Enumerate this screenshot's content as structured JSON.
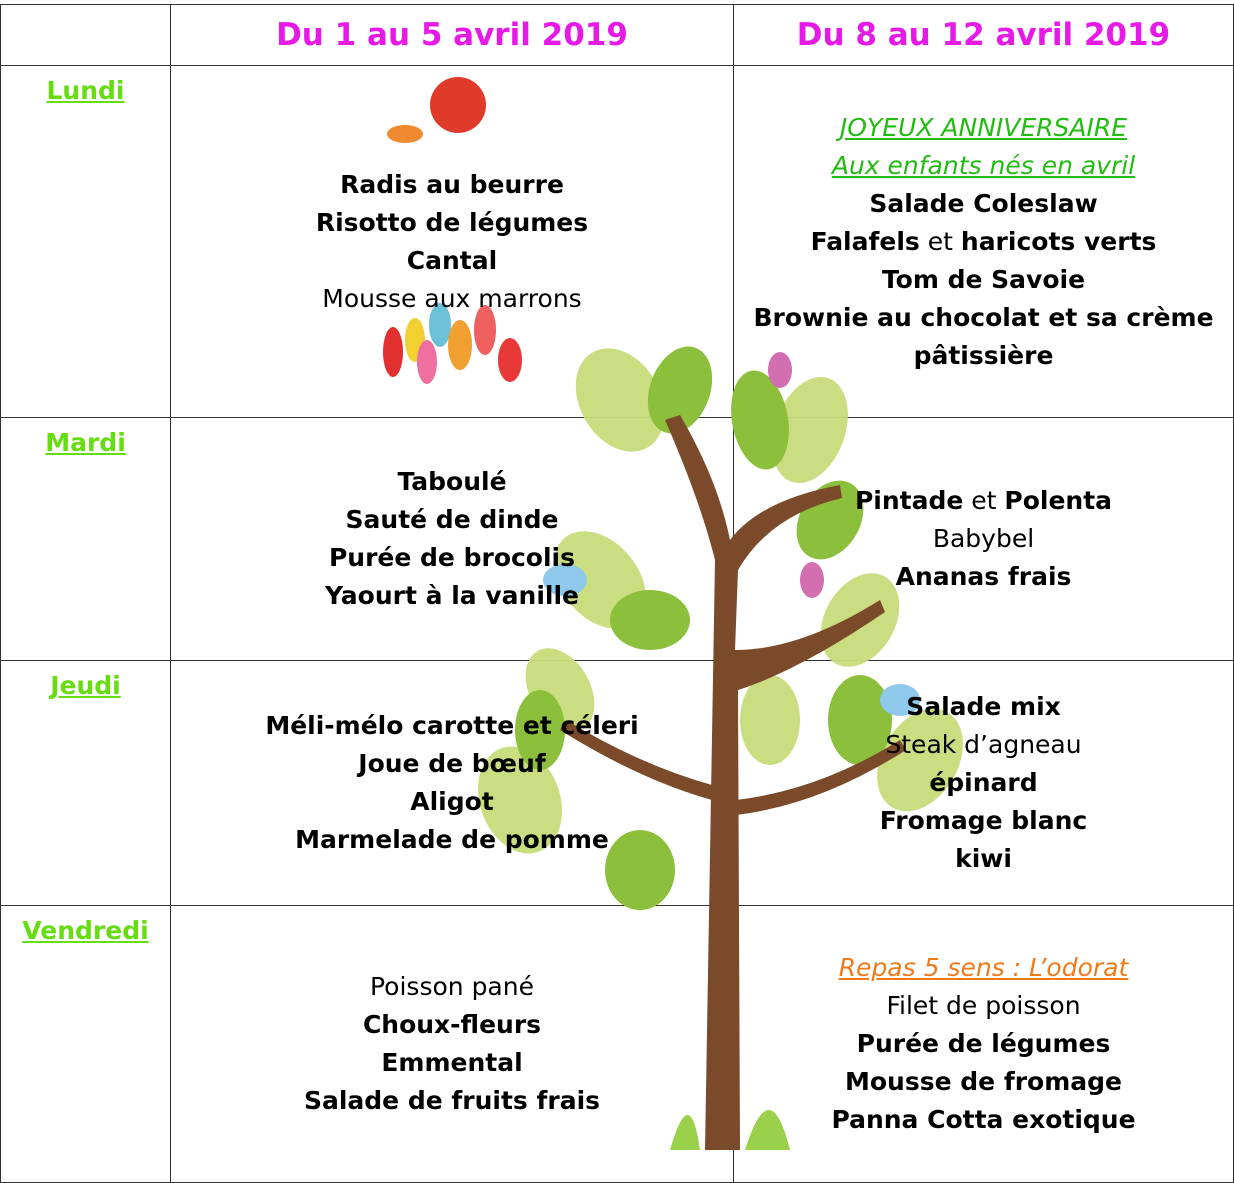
{
  "header": {
    "columns": [
      "Du 1 au 5 avril 2019",
      "Du 8 au 12 avril 2019"
    ]
  },
  "rows": [
    {
      "day": "Lundi",
      "cells": [
        [
          [
            {
              "text": "Radis au beurre",
              "style": "bold"
            }
          ],
          [
            {
              "text": "Risotto de légumes",
              "style": "bold"
            }
          ],
          [
            {
              "text": "Cantal",
              "style": "bold"
            }
          ],
          [
            {
              "text": "Mousse aux marrons",
              "style": "normal"
            }
          ]
        ],
        [
          [
            {
              "text": "JOYEUX ANNIVERSAIRE",
              "style": "green-italic"
            }
          ],
          [
            {
              "text": "Aux enfants nés en avril",
              "style": "green-italic"
            }
          ],
          [
            {
              "text": "Salade Coleslaw",
              "style": "bold"
            }
          ],
          [
            {
              "text": "Falafels",
              "style": "bold"
            },
            {
              "text": "et",
              "style": "normal"
            },
            {
              "text": "haricots verts",
              "style": "bold"
            }
          ],
          [
            {
              "text": "Tom de Savoie",
              "style": "bold"
            }
          ],
          [
            {
              "text": "Brownie au chocolat et sa crème pâtissière",
              "style": "bold"
            }
          ]
        ]
      ]
    },
    {
      "day": "Mardi",
      "cells": [
        [
          [
            {
              "text": "Taboulé",
              "style": "bold"
            }
          ],
          [
            {
              "text": "Sauté de dinde",
              "style": "bold"
            }
          ],
          [
            {
              "text": "Purée de brocolis",
              "style": "bold"
            }
          ],
          [
            {
              "text": "Yaourt à la vanille",
              "style": "bold"
            }
          ]
        ],
        [
          [
            {
              "text": "Pintade",
              "style": "bold"
            },
            {
              "text": "et",
              "style": "normal"
            },
            {
              "text": "Polenta",
              "style": "bold"
            }
          ],
          [
            {
              "text": "Babybel",
              "style": "normal"
            }
          ],
          [
            {
              "text": "Ananas frais",
              "style": "bold"
            }
          ]
        ]
      ]
    },
    {
      "day": "Jeudi",
      "cells": [
        [
          [
            {
              "text": "Méli-mélo carotte et céleri",
              "style": "bold"
            }
          ],
          [
            {
              "text": "Joue de bœuf",
              "style": "bold"
            }
          ],
          [
            {
              "text": "Aligot",
              "style": "bold"
            }
          ],
          [
            {
              "text": "Marmelade de pomme",
              "style": "bold"
            }
          ]
        ],
        [
          [
            {
              "text": "Salade mix",
              "style": "bold"
            }
          ],
          [
            {
              "text": "Steak d’agneau",
              "style": "normal"
            }
          ],
          [
            {
              "text": "épinard",
              "style": "bold"
            }
          ],
          [
            {
              "text": "Fromage blanc",
              "style": "bold"
            }
          ],
          [
            {
              "text": "kiwi",
              "style": "bold"
            }
          ]
        ]
      ]
    },
    {
      "day": "Vendredi",
      "cells": [
        [
          [
            {
              "text": "Poisson pané",
              "style": "normal"
            }
          ],
          [
            {
              "text": "Choux-fleurs",
              "style": "bold"
            }
          ],
          [
            {
              "text": "Emmental",
              "style": "bold"
            }
          ],
          [
            {
              "text": "Salade de fruits frais",
              "style": "bold"
            }
          ]
        ],
        [
          [
            {
              "text": "Repas 5 sens : L’odorat",
              "style": "orange-italic"
            }
          ],
          [
            {
              "text": "Filet de poisson",
              "style": "normal"
            }
          ],
          [
            {
              "text": "Purée de légumes",
              "style": "bold"
            }
          ],
          [
            {
              "text": "Mousse de fromage",
              "style": "bold"
            }
          ],
          [
            {
              "text": "Panna Cotta exotique",
              "style": "bold"
            }
          ]
        ]
      ]
    }
  ]
}
